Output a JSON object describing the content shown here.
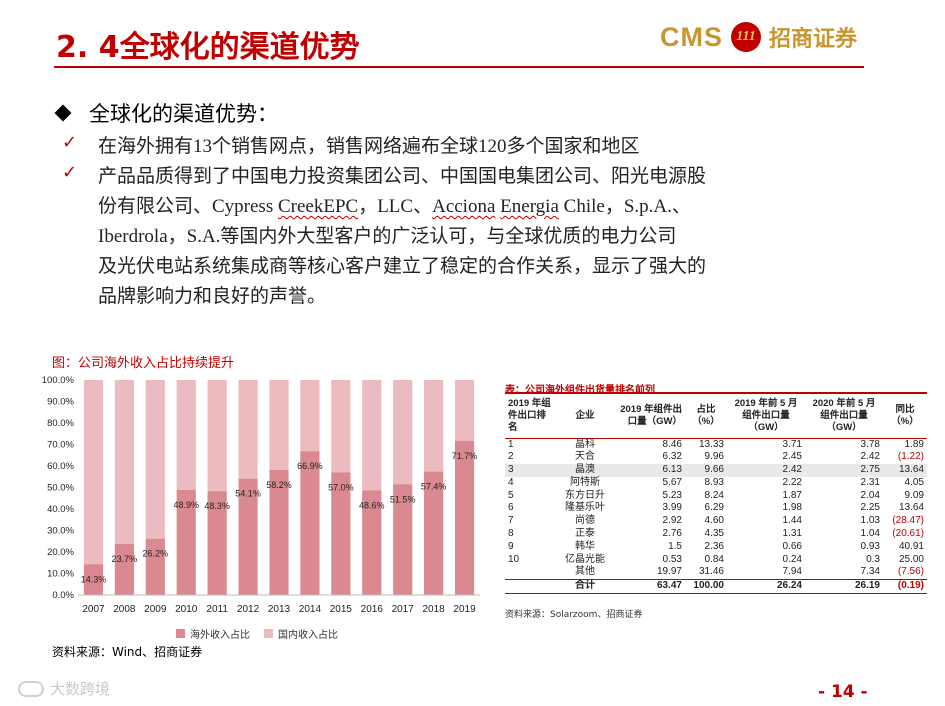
{
  "header": {
    "title": "2. 4全球化的渠道优势",
    "logo_latin": "CMS",
    "logo_mark": "111",
    "logo_cn": "招商证券"
  },
  "main_bullet": "全球化的渠道优势：",
  "points": [
    {
      "lines": [
        "在海外拥有13个销售网点，销售网络遍布全球120多个国家和地区"
      ]
    },
    {
      "lines": [
        "产品品质得到了中国电力投资集团公司、中国国电集团公司、阳光电源股",
        "份有限公司、Cypress CreekEPC，LLC、Acciona Energia Chile，S.p.A.、",
        "Iberdrola，S.A.等国内外大型客户的广泛认可，与全球优质的电力公司",
        "及光伏电站系统集成商等核心客户建立了稳定的合作关系，显示了强大的",
        "品牌影响力和良好的声誉。"
      ]
    }
  ],
  "chart_caption": "图：公司海外收入占比持续提升",
  "chart_source": "资料来源：Wind、招商证券",
  "chart_data": {
    "type": "bar",
    "stacked": true,
    "title": "公司海外收入占比持续提升",
    "categories": [
      "2007",
      "2008",
      "2009",
      "2010",
      "2011",
      "2012",
      "2013",
      "2014",
      "2015",
      "2016",
      "2017",
      "2018",
      "2019"
    ],
    "series": [
      {
        "name": "海外收入占比",
        "values": [
          14.3,
          23.7,
          26.2,
          48.9,
          48.3,
          54.1,
          58.2,
          66.9,
          57.0,
          48.6,
          51.5,
          57.4,
          71.7
        ],
        "labels": [
          "14.3%",
          "23.7%",
          "26.2%",
          "48.9%",
          "48.3%",
          "54.1%",
          "58.2%",
          "66.9%",
          "57.0%",
          "48.6%",
          "51.5%",
          "57.4%",
          "71.7%"
        ]
      },
      {
        "name": "国内收入占比",
        "values": [
          85.7,
          76.3,
          73.8,
          51.1,
          51.7,
          45.9,
          41.8,
          33.1,
          43.0,
          51.4,
          48.5,
          42.6,
          28.3
        ]
      }
    ],
    "ylim": [
      0,
      100
    ],
    "yticks": [
      "0.0%",
      "10.0%",
      "20.0%",
      "30.0%",
      "40.0%",
      "50.0%",
      "60.0%",
      "70.0%",
      "80.0%",
      "90.0%",
      "100.0%"
    ],
    "legend": [
      "海外收入占比",
      "国内收入占比"
    ],
    "colors": {
      "overseas": "#d9898f",
      "domestic": "#ecbbbf"
    }
  },
  "table": {
    "caption": "表：公司海外组件出货量排名前列",
    "headers": [
      "2019 年组件出口排名",
      "企业",
      "2019 年组件出口量（GW）",
      "占比（%）",
      "2019 年前 5 月组件出口量（GW）",
      "2020 年前 5 月组件出口量（GW）",
      "同比（%）"
    ],
    "rows": [
      [
        "1",
        "晶科",
        "8.46",
        "13.33",
        "3.71",
        "3.78",
        "1.89"
      ],
      [
        "2",
        "天合",
        "6.32",
        "9.96",
        "2.45",
        "2.42",
        "(1.22)"
      ],
      [
        "3",
        "晶澳",
        "6.13",
        "9.66",
        "2.42",
        "2.75",
        "13.64"
      ],
      [
        "4",
        "阿特斯",
        "5.67",
        "8.93",
        "2.22",
        "2.31",
        "4.05"
      ],
      [
        "5",
        "东方日升",
        "5.23",
        "8.24",
        "1.87",
        "2.04",
        "9.09"
      ],
      [
        "6",
        "隆基乐叶",
        "3.99",
        "6.29",
        "1.98",
        "2.25",
        "13.64"
      ],
      [
        "7",
        "尚德",
        "2.92",
        "4.60",
        "1.44",
        "1.03",
        "(28.47)"
      ],
      [
        "8",
        "正泰",
        "2.76",
        "4.35",
        "1.31",
        "1.04",
        "(20.61)"
      ],
      [
        "9",
        "韩华",
        "1.5",
        "2.36",
        "0.66",
        "0.93",
        "40.91"
      ],
      [
        "10",
        "亿晶光能",
        "0.53",
        "0.84",
        "0.24",
        "0.3",
        "25.00"
      ],
      [
        "",
        "其他",
        "19.97",
        "31.46",
        "7.94",
        "7.34",
        "(7.56)"
      ]
    ],
    "total": [
      "",
      "合计",
      "63.47",
      "100.00",
      "26.24",
      "26.19",
      "(0.19)"
    ],
    "source": "资料来源：Solarzoom、招商证券"
  },
  "watermark": "大数跨境",
  "page_number": "- 14 -"
}
